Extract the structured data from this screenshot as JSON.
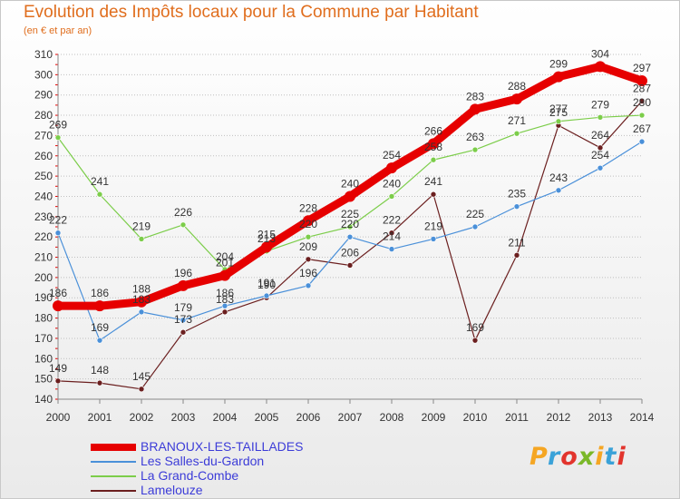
{
  "title": "Evolution des Impôts locaux pour la Commune par Habitant",
  "subtitle": "(en € et par an)",
  "logo": {
    "text": "Proxiti",
    "colors": [
      "#f5a623",
      "#3aa2d8",
      "#e2342d",
      "#7ab829",
      "#f5a623",
      "#3aa2d8",
      "#e2342d"
    ]
  },
  "chart_data": {
    "type": "line",
    "title": "Evolution des Impôts locaux pour la Commune par Habitant",
    "subtitle": "(en € et par an)",
    "xlabel": "",
    "ylabel": "",
    "x": [
      2000,
      2001,
      2002,
      2003,
      2004,
      2005,
      2006,
      2007,
      2008,
      2009,
      2010,
      2011,
      2012,
      2013,
      2014
    ],
    "ylim": [
      140,
      310
    ],
    "yticks": [
      140,
      150,
      160,
      170,
      180,
      190,
      200,
      210,
      220,
      230,
      240,
      250,
      260,
      270,
      280,
      290,
      300,
      310
    ],
    "grid": "horizontal dotted",
    "legend_position": "bottom-left",
    "series": [
      {
        "name": "BRANOUX-LES-TAILLADES",
        "color": "#e60000",
        "width": 9,
        "values": [
          186,
          186,
          188,
          196,
          201,
          215,
          228,
          240,
          254,
          266,
          283,
          288,
          299,
          304,
          297
        ]
      },
      {
        "name": "Les Salles-du-Gardon",
        "color": "#4a90d9",
        "width": 1.2,
        "values": [
          222,
          169,
          183,
          179,
          186,
          191,
          196,
          220,
          214,
          219,
          225,
          235,
          243,
          254,
          267
        ]
      },
      {
        "name": "La Grand-Combe",
        "color": "#7ccd4a",
        "width": 1.2,
        "values": [
          269,
          241,
          219,
          226,
          204,
          213,
          220,
          225,
          240,
          258,
          263,
          271,
          277,
          279,
          280
        ]
      },
      {
        "name": "Lamelouze",
        "color": "#6b1f1f",
        "width": 1.2,
        "values": [
          149,
          148,
          145,
          173,
          183,
          190,
          209,
          206,
          222,
          241,
          169,
          211,
          275,
          264,
          287
        ]
      }
    ]
  }
}
